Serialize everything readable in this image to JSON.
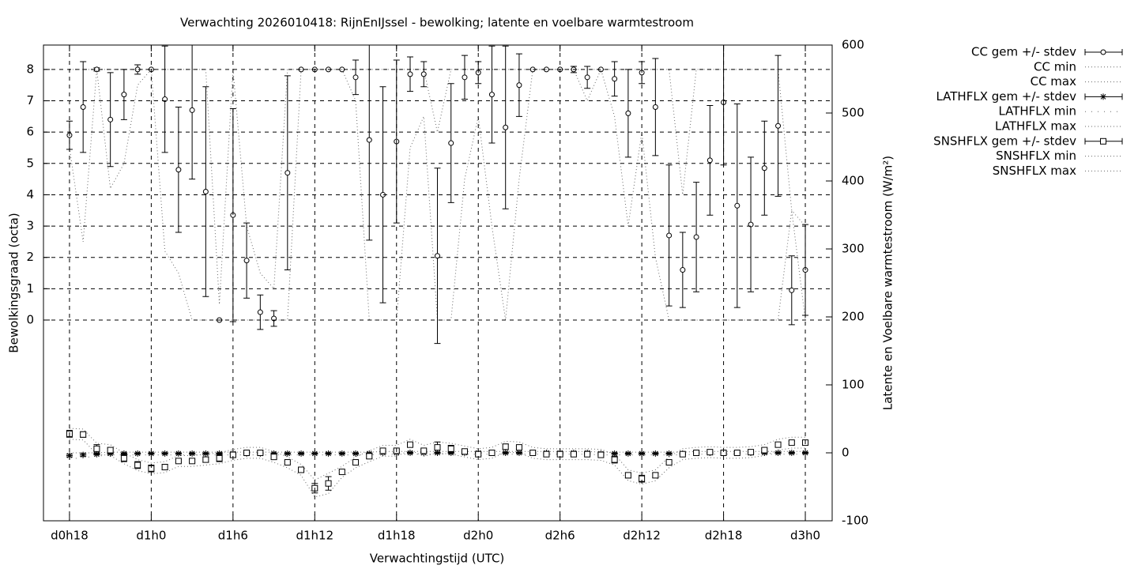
{
  "chart_data": {
    "type": "errorbar",
    "title": "Verwachting 2026010418: RijnEnIJssel - bewolking; latente en voelbare warmtestroom",
    "xlabel": "Verwachtingstijd (UTC)",
    "ylabel": "Bewolkingsgraad (octa)",
    "y2label": "Latente en Voelbare warmtestroom (W/m²)",
    "x": [
      18,
      19,
      20,
      21,
      22,
      23,
      24,
      25,
      26,
      27,
      28,
      29,
      30,
      31,
      32,
      33,
      34,
      35,
      36,
      37,
      38,
      39,
      40,
      41,
      42,
      43,
      44,
      45,
      46,
      47,
      48,
      49,
      50,
      51,
      52,
      53,
      54,
      55,
      56,
      57,
      58,
      59,
      60,
      61,
      62,
      63,
      64,
      65,
      66,
      67,
      68,
      69,
      70,
      71,
      72
    ],
    "xlim": [
      16.09,
      73.97
    ],
    "xticks": [
      {
        "value": 18,
        "label": "d0h18"
      },
      {
        "value": 24,
        "label": "d1h0"
      },
      {
        "value": 30,
        "label": "d1h6"
      },
      {
        "value": 36,
        "label": "d1h12"
      },
      {
        "value": 42,
        "label": "d1h18"
      },
      {
        "value": 48,
        "label": "d2h0"
      },
      {
        "value": 54,
        "label": "d2h6"
      },
      {
        "value": 60,
        "label": "d2h12"
      },
      {
        "value": 66,
        "label": "d2h18"
      },
      {
        "value": 72,
        "label": "d3h0"
      }
    ],
    "ylim": [
      -6.41,
      8.78
    ],
    "yticks": [
      0,
      1,
      2,
      3,
      4,
      5,
      6,
      7,
      8
    ],
    "y2lim": [
      -100,
      600
    ],
    "y2ticks": [
      -100,
      0,
      100,
      200,
      300,
      400,
      500,
      600
    ],
    "grid": true,
    "legend": "outside-right",
    "color": "#000000",
    "series": [
      {
        "name": "CC gem +/- stdev",
        "style": "errorbars",
        "marker": "circle",
        "color": "#000000",
        "values": [
          5.9,
          6.8,
          8,
          6.4,
          7.2,
          8,
          8,
          7.05,
          4.8,
          6.7,
          4.1,
          0,
          3.35,
          1.9,
          0.25,
          0.05,
          4.7,
          8,
          8,
          8,
          8,
          7.75,
          5.75,
          4,
          5.7,
          7.85,
          7.85,
          2.05,
          5.65,
          7.75,
          7.9,
          7.2,
          6.15,
          7.5,
          8,
          8,
          8,
          8,
          7.75,
          8,
          7.7,
          6.6,
          7.9,
          6.8,
          2.7,
          1.6,
          2.65,
          5.1,
          6.95,
          3.65,
          3.05,
          4.85,
          6.2,
          0.95,
          1.6
        ],
        "stdev": [
          0.45,
          1.45,
          0.05,
          1.5,
          0.8,
          0.15,
          0,
          1.7,
          2,
          2.2,
          3.35,
          0,
          3.4,
          1.2,
          0.55,
          0.25,
          3.1,
          0,
          0,
          0,
          0,
          0.55,
          3.2,
          3.45,
          2.6,
          0.55,
          0.4,
          2.8,
          1.9,
          0.7,
          0.35,
          1.55,
          2.6,
          1,
          0,
          0,
          0,
          0.1,
          0.35,
          0,
          0.55,
          1.4,
          0.35,
          1.55,
          2.25,
          1.2,
          1.75,
          1.75,
          2,
          3.25,
          2.15,
          1.5,
          2.25,
          1.1,
          1.45
        ]
      },
      {
        "name": "CC min",
        "style": "dotted",
        "color": "#000000",
        "values": [
          5.5,
          2.5,
          8,
          4.2,
          5,
          7.5,
          8,
          2.2,
          1.5,
          0,
          0,
          0,
          0,
          0,
          0,
          0,
          0,
          8,
          8,
          8,
          8,
          7,
          0,
          0,
          0,
          5.5,
          6.5,
          0,
          0,
          4.5,
          6.5,
          3,
          0,
          4.5,
          8,
          8,
          8,
          8,
          7,
          8,
          6.5,
          3,
          6,
          2,
          0,
          0,
          0,
          0,
          0,
          0,
          0,
          0,
          0,
          3.5,
          0
        ]
      },
      {
        "name": "CC max",
        "style": "dotted",
        "color": "#000000",
        "values": [
          8,
          8,
          8,
          8,
          8,
          8,
          8,
          8,
          8,
          8,
          8,
          0.5,
          8,
          3,
          1.5,
          1,
          8,
          8,
          8,
          8,
          8,
          8,
          8,
          8,
          8,
          8,
          8,
          6,
          8,
          8,
          8,
          8,
          8,
          8,
          8,
          8,
          8,
          8,
          8,
          8,
          8,
          8,
          8,
          8,
          8,
          4,
          8,
          8,
          8,
          8,
          8,
          8,
          8,
          3.5,
          3
        ]
      },
      {
        "name": "LATHFLX gem +/- stdev",
        "style": "errorbars",
        "marker": "star",
        "axis": "y2",
        "color": "#000000",
        "values": [
          -4,
          -3,
          -2,
          -1,
          -1,
          -1,
          -1,
          -1,
          -1,
          -1,
          -1,
          -1,
          -1,
          -1,
          -1,
          -1,
          -1,
          -1,
          -1,
          -1,
          -1,
          -1,
          -1,
          0,
          0,
          0,
          0,
          0,
          0,
          0,
          0,
          0,
          0,
          0,
          0,
          0,
          0,
          0,
          0,
          -1,
          -1,
          -1,
          -1,
          -1,
          -1,
          -1,
          0,
          0,
          0,
          0,
          0,
          0,
          0,
          0,
          0
        ],
        "stdev": [
          2,
          2,
          1,
          1,
          1,
          1,
          1,
          1,
          1,
          1,
          1,
          1,
          1,
          1,
          1,
          1,
          1,
          1,
          1,
          1,
          1,
          1,
          1,
          1,
          1,
          1,
          1,
          1,
          1,
          1,
          1,
          1,
          1,
          1,
          1,
          1,
          1,
          1,
          1,
          1,
          1,
          1,
          1,
          1,
          1,
          1,
          1,
          1,
          1,
          1,
          1,
          1,
          1,
          1,
          1
        ]
      },
      {
        "name": "LATHFLX min",
        "style": "sparse-dotted",
        "axis": "y2",
        "color": "#000000",
        "values": [
          -9,
          -7,
          -5,
          -3,
          -3,
          -3,
          -3,
          -3,
          -3,
          -3,
          -3,
          -3,
          -3,
          -3,
          -3,
          -3,
          -3,
          -3,
          -3,
          -3,
          -3,
          -3,
          -3,
          -2,
          -2,
          -2,
          -2,
          -2,
          -2,
          -2,
          -2,
          -2,
          -2,
          -2,
          -2,
          -2,
          -2,
          -2,
          -2,
          -3,
          -3,
          -3,
          -3,
          -3,
          -3,
          -3,
          -2,
          -2,
          -2,
          -2,
          -2,
          -2,
          -2,
          -2,
          -2
        ]
      },
      {
        "name": "LATHFLX max",
        "style": "dotted",
        "axis": "y2",
        "color": "#000000",
        "values": [
          0,
          0,
          0,
          1,
          1,
          1,
          1,
          1,
          1,
          1,
          1,
          1,
          1,
          1,
          1,
          1,
          1,
          1,
          1,
          1,
          1,
          1,
          1,
          2,
          2,
          2,
          2,
          2,
          2,
          2,
          2,
          2,
          2,
          2,
          2,
          2,
          2,
          2,
          2,
          1,
          1,
          1,
          1,
          1,
          1,
          1,
          2,
          2,
          2,
          2,
          2,
          2,
          2,
          2,
          2
        ]
      },
      {
        "name": "SNSHFLX gem +/- stdev",
        "style": "errorbars",
        "marker": "square",
        "axis": "y2",
        "color": "#000000",
        "values": [
          28,
          27,
          6,
          4,
          -8,
          -18,
          -23,
          -21,
          -12,
          -12,
          -10,
          -8,
          -3,
          0,
          0,
          -6,
          -14,
          -25,
          -52,
          -45,
          -28,
          -14,
          -5,
          3,
          3,
          12,
          3,
          8,
          6,
          2,
          -2,
          0,
          9,
          8,
          0,
          -2,
          -2,
          -2,
          -2,
          -3,
          -10,
          -33,
          -38,
          -33,
          -14,
          -2,
          0,
          1,
          0,
          0,
          1,
          4,
          12,
          15,
          15
        ],
        "stdev": [
          5,
          4,
          6,
          3,
          5,
          5,
          5,
          4,
          2,
          2,
          4,
          5,
          3,
          1,
          1,
          3,
          2,
          2,
          7,
          10,
          2,
          3,
          3,
          2,
          2,
          2,
          2,
          8,
          5,
          2,
          2,
          3,
          4,
          2,
          1,
          1,
          1,
          1,
          1,
          1,
          5,
          4,
          5,
          3,
          2,
          1,
          1,
          1,
          1,
          1,
          1,
          2,
          3,
          2,
          3
        ]
      },
      {
        "name": "SNSHFLX min",
        "style": "dotted",
        "axis": "y2",
        "color": "#000000",
        "values": [
          20,
          19,
          -2,
          -4,
          -16,
          -26,
          -31,
          -29,
          -20,
          -20,
          -18,
          -16,
          -11,
          -8,
          -8,
          -14,
          -22,
          -33,
          -65,
          -60,
          -36,
          -22,
          -13,
          -5,
          -5,
          4,
          -5,
          0,
          -2,
          -6,
          -10,
          -8,
          1,
          0,
          -8,
          -10,
          -10,
          -10,
          -10,
          -11,
          -18,
          -41,
          -46,
          -41,
          -22,
          -10,
          -8,
          -7,
          -8,
          -8,
          -7,
          -4,
          4,
          7,
          7
        ]
      },
      {
        "name": "SNSHFLX max",
        "style": "dotted",
        "axis": "y2",
        "color": "#000000",
        "values": [
          36,
          35,
          14,
          12,
          0,
          -10,
          -15,
          -13,
          -4,
          -4,
          -2,
          0,
          5,
          8,
          8,
          2,
          -6,
          -17,
          -40,
          -30,
          -20,
          -6,
          3,
          11,
          11,
          20,
          11,
          16,
          14,
          10,
          6,
          8,
          17,
          16,
          8,
          6,
          6,
          6,
          6,
          5,
          -2,
          -25,
          -30,
          -25,
          -6,
          6,
          8,
          9,
          8,
          8,
          9,
          12,
          20,
          23,
          23
        ]
      }
    ]
  }
}
